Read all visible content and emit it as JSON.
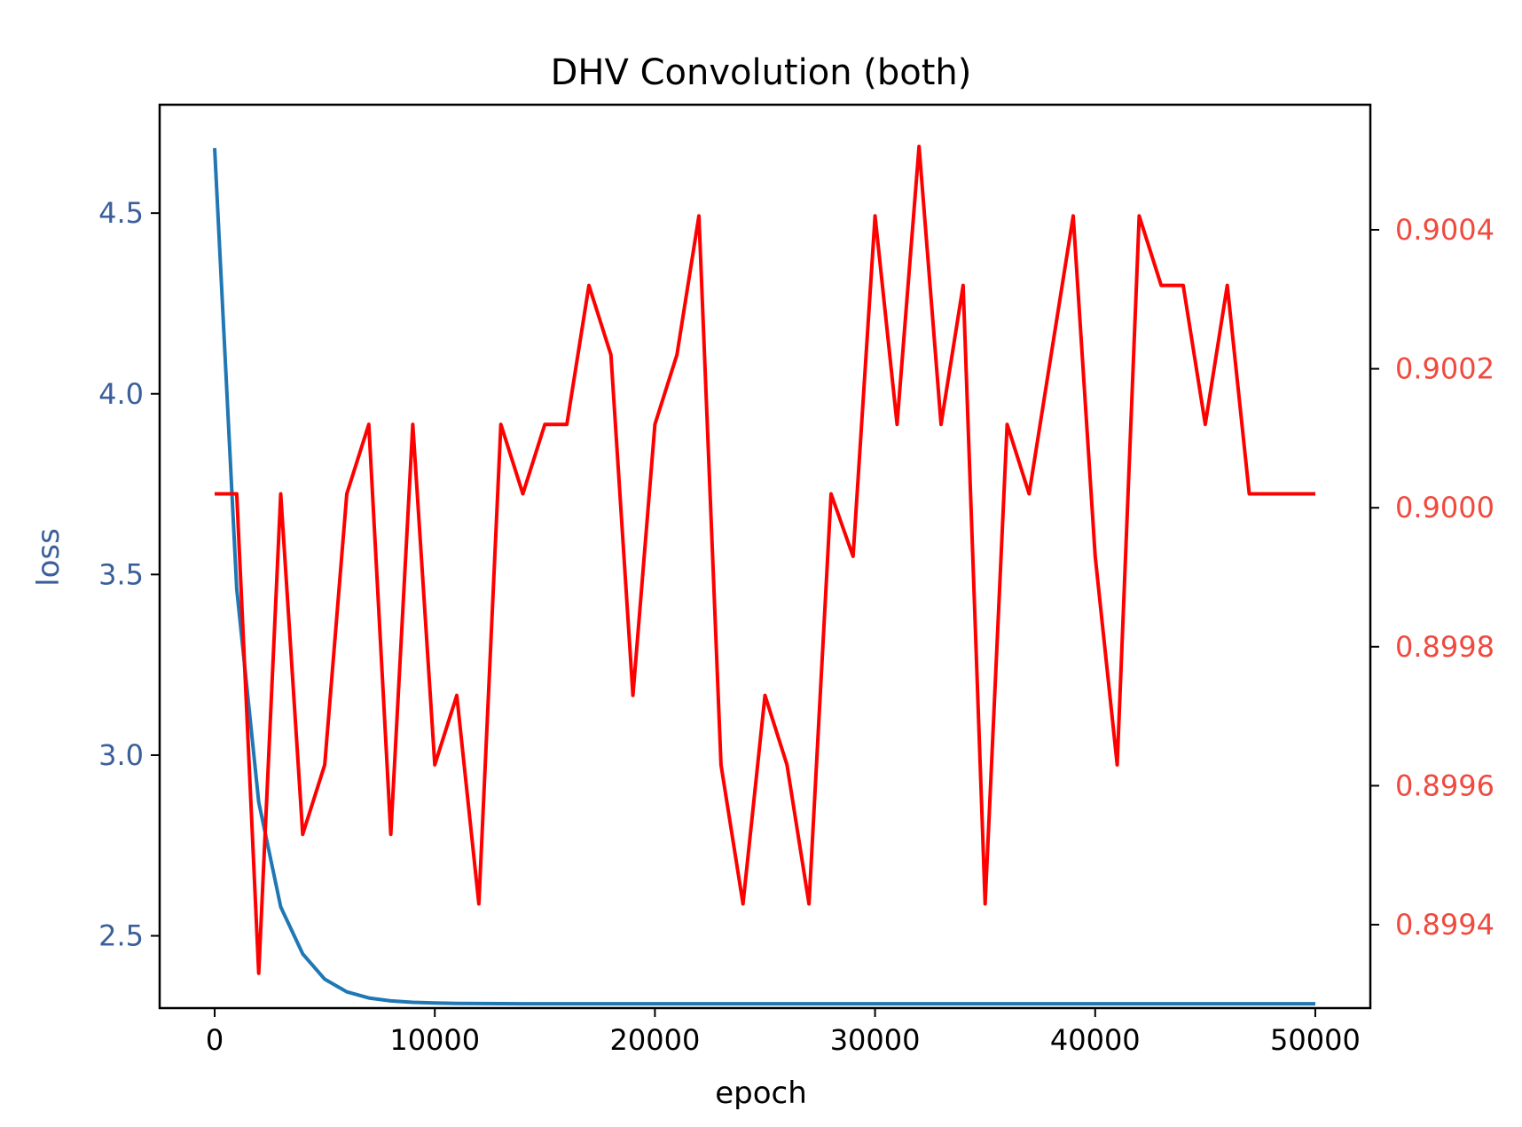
{
  "chart_data": {
    "type": "line",
    "title": "DHV Convolution (both)",
    "xlabel": "epoch",
    "ylabel_left": "loss",
    "ylabel_right": "",
    "xlim": [
      -2500,
      52500
    ],
    "ylim_left": [
      2.3,
      4.8
    ],
    "ylim_right": [
      0.89928,
      0.90058
    ],
    "x_ticks": [
      0,
      10000,
      20000,
      30000,
      40000,
      50000
    ],
    "y_left_ticks": [
      2.5,
      3.0,
      3.5,
      4.0,
      4.5
    ],
    "y_left_tick_labels": [
      "2.5",
      "3.0",
      "3.5",
      "4.0",
      "4.5"
    ],
    "y_right_ticks": [
      0.8994,
      0.8996,
      0.8998,
      0.9,
      0.9002,
      0.9004
    ],
    "y_right_tick_labels": [
      "0.8994",
      "0.8996",
      "0.8998",
      "0.9000",
      "0.9002",
      "0.9004"
    ],
    "grid": false,
    "left_axis_color": "#3a5f9a",
    "right_axis_color": "#f04a3e",
    "x": [
      0,
      1000,
      2000,
      3000,
      4000,
      5000,
      6000,
      7000,
      8000,
      9000,
      10000,
      11000,
      12000,
      13000,
      14000,
      15000,
      16000,
      17000,
      18000,
      19000,
      20000,
      21000,
      22000,
      23000,
      24000,
      25000,
      26000,
      27000,
      28000,
      29000,
      30000,
      31000,
      32000,
      33000,
      34000,
      35000,
      36000,
      37000,
      38000,
      39000,
      40000,
      41000,
      42000,
      43000,
      44000,
      45000,
      46000,
      47000,
      48000,
      49000,
      50000
    ],
    "series": [
      {
        "axis": "left",
        "color": "#1f77b4",
        "values": [
          4.68,
          3.46,
          2.87,
          2.58,
          2.45,
          2.38,
          2.345,
          2.328,
          2.32,
          2.316,
          2.314,
          2.313,
          2.3125,
          2.3122,
          2.312,
          2.312,
          2.312,
          2.312,
          2.312,
          2.312,
          2.312,
          2.312,
          2.312,
          2.312,
          2.312,
          2.312,
          2.312,
          2.312,
          2.312,
          2.312,
          2.312,
          2.312,
          2.312,
          2.312,
          2.312,
          2.312,
          2.312,
          2.312,
          2.312,
          2.312,
          2.312,
          2.312,
          2.312,
          2.312,
          2.312,
          2.312,
          2.312,
          2.312,
          2.312,
          2.312,
          2.312
        ]
      },
      {
        "axis": "right",
        "color": "#ff0000",
        "values": [
          0.90002,
          0.90002,
          0.89933,
          0.90002,
          0.89953,
          0.89963,
          0.90002,
          0.90012,
          0.89953,
          0.90012,
          0.89963,
          0.89973,
          0.89943,
          0.90012,
          0.90002,
          0.90012,
          0.90012,
          0.90032,
          0.90022,
          0.89973,
          0.90012,
          0.90022,
          0.90042,
          0.89963,
          0.89943,
          0.89973,
          0.89963,
          0.89943,
          0.90002,
          0.89993,
          0.90042,
          0.90012,
          0.90052,
          0.90012,
          0.90032,
          0.89943,
          0.90012,
          0.90002,
          0.90022,
          0.90042,
          0.89993,
          0.89963,
          0.90042,
          0.90032,
          0.90032,
          0.90012,
          0.90032,
          0.90002,
          0.90002,
          0.90002,
          0.90002
        ]
      }
    ]
  }
}
